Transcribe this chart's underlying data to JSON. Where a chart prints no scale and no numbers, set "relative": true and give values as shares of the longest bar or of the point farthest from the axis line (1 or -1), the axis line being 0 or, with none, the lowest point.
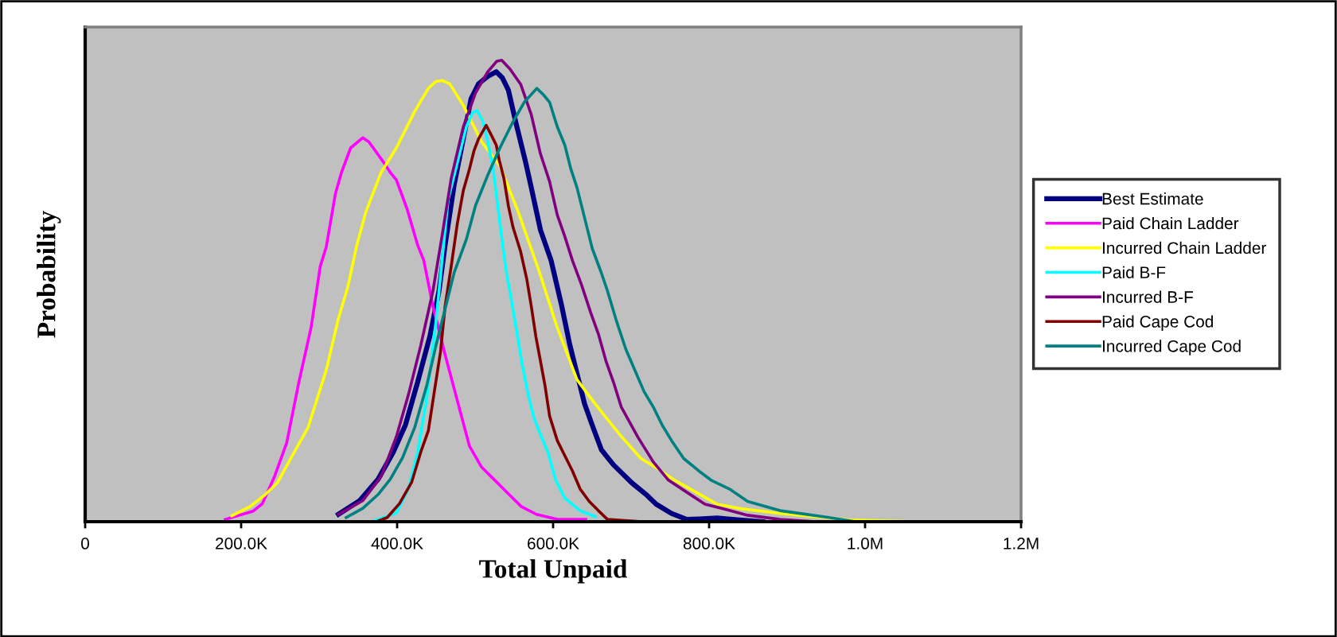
{
  "chart_data": {
    "type": "line",
    "relative": true,
    "xlabel": "Total Unpaid",
    "ylabel": "Probability",
    "xlim": [
      0,
      1200000
    ],
    "xticks": [
      {
        "value": 0,
        "label": "0"
      },
      {
        "value": 200000,
        "label": "200.0K"
      },
      {
        "value": 400000,
        "label": "400.0K"
      },
      {
        "value": 600000,
        "label": "600.0K"
      },
      {
        "value": 800000,
        "label": "800.0K"
      },
      {
        "value": 1000000,
        "label": "1.0M"
      },
      {
        "value": 1200000,
        "label": "1.2M"
      }
    ],
    "grid": false,
    "legend": "right",
    "marker": "none",
    "line_style": "solid",
    "tick_labels": "x",
    "series": [
      {
        "name": "Best Estimate",
        "color": "#000080",
        "x": [
          324800,
          352200,
          375600,
          395100,
          410700,
          426400,
          442000,
          453700,
          461500,
          473200,
          484900,
          494700,
          504400,
          516200,
          527100,
          534900,
          542700,
          552500,
          564200,
          572000,
          583800,
          597400,
          611100,
          620900,
          630600,
          640400,
          650200,
          661900,
          677500,
          701000,
          720500,
          732200,
          751800,
          771300,
          787000,
          810400,
          829900,
          869000
        ],
        "values": [
          0.016,
          0.046,
          0.092,
          0.151,
          0.21,
          0.303,
          0.402,
          0.5,
          0.599,
          0.731,
          0.83,
          0.916,
          0.949,
          0.965,
          0.975,
          0.962,
          0.935,
          0.863,
          0.783,
          0.724,
          0.632,
          0.566,
          0.467,
          0.387,
          0.321,
          0.255,
          0.209,
          0.156,
          0.123,
          0.084,
          0.057,
          0.038,
          0.018,
          0.005,
          0.006,
          0.008,
          0.005,
          0
        ]
      },
      {
        "name": "Paid Chain Ladder",
        "color": "#ff00ff",
        "x": [
          179600,
          215500,
          227200,
          242800,
          258400,
          274100,
          289700,
          301400,
          309200,
          320900,
          328700,
          340400,
          356100,
          363900,
          373600,
          383400,
          391200,
          399000,
          412700,
          426400,
          434200,
          445900,
          461500,
          477100,
          492700,
          508400,
          524000,
          543500,
          559100,
          578600,
          605200,
          642000
        ],
        "values": [
          0.005,
          0.023,
          0.039,
          0.098,
          0.171,
          0.303,
          0.421,
          0.553,
          0.596,
          0.711,
          0.757,
          0.81,
          0.832,
          0.823,
          0.8,
          0.777,
          0.757,
          0.741,
          0.678,
          0.599,
          0.566,
          0.467,
          0.362,
          0.263,
          0.164,
          0.118,
          0.092,
          0.059,
          0.033,
          0.016,
          0.005,
          0.005
        ]
      },
      {
        "name": "Incurred Chain Ladder",
        "color": "#ffff00",
        "x": [
          188200,
          211600,
          231100,
          246700,
          266200,
          285800,
          309200,
          324800,
          336500,
          348300,
          360000,
          379500,
          399000,
          422500,
          440000,
          449800,
          457600,
          467400,
          484900,
          508400,
          531800,
          555200,
          582600,
          605200,
          630600,
          654100,
          685300,
          712700,
          732200,
          755700,
          783000,
          810400,
          841600,
          890900,
          980000,
          1064000
        ],
        "values": [
          0.013,
          0.033,
          0.059,
          0.085,
          0.145,
          0.204,
          0.329,
          0.441,
          0.507,
          0.599,
          0.672,
          0.757,
          0.81,
          0.889,
          0.939,
          0.954,
          0.956,
          0.949,
          0.902,
          0.823,
          0.771,
          0.672,
          0.54,
          0.421,
          0.308,
          0.255,
          0.189,
          0.137,
          0.117,
          0.09,
          0.064,
          0.038,
          0.028,
          0.018,
          0.004,
          0
        ]
      },
      {
        "name": "Paid B-F",
        "color": "#00ffff",
        "x": [
          367800,
          399000,
          414600,
          426400,
          438100,
          449800,
          457600,
          465400,
          477100,
          488800,
          496600,
          502500,
          509500,
          515400,
          523200,
          529100,
          534900,
          540800,
          546600,
          554500,
          560300,
          568100,
          576000,
          583800,
          593500,
          603300,
          615000,
          634600,
          654100
        ],
        "values": [
          0,
          0.019,
          0.072,
          0.151,
          0.27,
          0.434,
          0.566,
          0.698,
          0.777,
          0.856,
          0.886,
          0.891,
          0.869,
          0.83,
          0.764,
          0.684,
          0.605,
          0.533,
          0.48,
          0.401,
          0.341,
          0.275,
          0.222,
          0.189,
          0.15,
          0.09,
          0.051,
          0.024,
          0.011
        ]
      },
      {
        "name": "Incurred B-F",
        "color": "#800080",
        "x": [
          324800,
          356100,
          379500,
          399000,
          414600,
          430300,
          445900,
          457600,
          469300,
          484900,
          500500,
          516200,
          527900,
          534100,
          544700,
          558400,
          572000,
          583800,
          595500,
          605300,
          615000,
          624800,
          636500,
          648200,
          658000,
          667800,
          677500,
          687300,
          708800,
          728300,
          747900,
          771300,
          794700,
          818200,
          849400,
          890900,
          936700
        ],
        "values": [
          0.016,
          0.046,
          0.098,
          0.184,
          0.276,
          0.382,
          0.5,
          0.619,
          0.744,
          0.856,
          0.929,
          0.975,
          0.998,
          1,
          0.981,
          0.948,
          0.882,
          0.797,
          0.737,
          0.665,
          0.618,
          0.566,
          0.513,
          0.453,
          0.407,
          0.348,
          0.302,
          0.249,
          0.183,
          0.13,
          0.09,
          0.064,
          0.038,
          0.028,
          0.014,
          0.005,
          0
        ]
      },
      {
        "name": "Paid Cape Cod",
        "color": "#800000",
        "x": [
          373600,
          387300,
          402900,
          418500,
          430300,
          440000,
          447800,
          455600,
          461500,
          469300,
          477100,
          484900,
          492700,
          498600,
          504500,
          514200,
          521300,
          527100,
          531000,
          536900,
          542700,
          548600,
          558400,
          566200,
          572000,
          577900,
          583800,
          589600,
          595500,
          605300,
          615000,
          624800,
          634600,
          646300,
          658000,
          669700,
          712700
        ],
        "values": [
          0,
          0.009,
          0.039,
          0.085,
          0.151,
          0.197,
          0.283,
          0.368,
          0.467,
          0.553,
          0.645,
          0.718,
          0.764,
          0.804,
          0.83,
          0.859,
          0.836,
          0.816,
          0.783,
          0.744,
          0.684,
          0.638,
          0.585,
          0.526,
          0.467,
          0.401,
          0.348,
          0.295,
          0.229,
          0.176,
          0.143,
          0.11,
          0.071,
          0.044,
          0.024,
          0.005,
          0
        ]
      },
      {
        "name": "Incurred Cape Cod",
        "color": "#008080",
        "x": [
          334600,
          356100,
          375600,
          391200,
          406800,
          422500,
          438100,
          449800,
          461500,
          473200,
          488800,
          500500,
          516200,
          531800,
          547400,
          563000,
          579100,
          587700,
          595500,
          605300,
          615000,
          622800,
          630600,
          638500,
          650200,
          661900,
          669700,
          681400,
          693200,
          704900,
          716600,
          728300,
          740000,
          751800,
          767400,
          786900,
          802600,
          826000,
          849400,
          890900,
          953800,
          987800,
          1038800
        ],
        "values": [
          0.009,
          0.029,
          0.059,
          0.092,
          0.138,
          0.204,
          0.296,
          0.382,
          0.461,
          0.54,
          0.612,
          0.685,
          0.751,
          0.81,
          0.863,
          0.909,
          0.939,
          0.925,
          0.909,
          0.856,
          0.816,
          0.764,
          0.724,
          0.671,
          0.592,
          0.539,
          0.5,
          0.434,
          0.374,
          0.328,
          0.282,
          0.249,
          0.209,
          0.176,
          0.137,
          0.11,
          0.09,
          0.071,
          0.044,
          0.024,
          0.009,
          0,
          0
        ]
      }
    ]
  }
}
